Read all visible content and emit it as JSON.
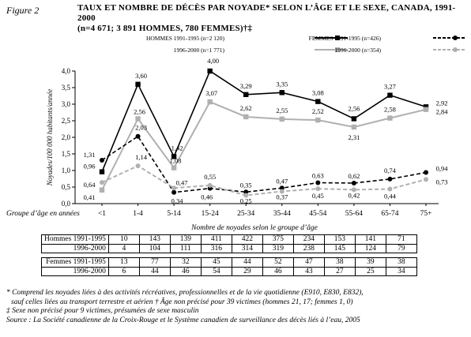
{
  "figure_label": "Figure 2",
  "title_line1": "TAUX ET NOMBRE DE DÉCÈS PAR NOYADE* SELON L’ÂGE ET LE SEXE, CANADA, 1991-2000",
  "title_line2": "(n=4 671; 3 891 HOMMES, 780 FEMMES)†‡",
  "chart_data": {
    "type": "line",
    "ylabel": "Noyades/100 000 habitants/année",
    "xlabel": "Nombre de noyades selon le groupe d’âge",
    "x_row_label": "Groupe d’âge en années",
    "ylim": [
      0,
      4.0
    ],
    "yticks": [
      "0,0",
      "0,5",
      "1,0",
      "1,5",
      "2,0",
      "2,5",
      "3,0",
      "3,5",
      "4,0"
    ],
    "categories": [
      "<1",
      "1-4",
      "5-14",
      "15-24",
      "25-34",
      "35-44",
      "45-54",
      "55-64",
      "65-74",
      "75+"
    ],
    "grid": false,
    "legend_position": "top",
    "series": [
      {
        "name": "HOMMES 1991-1995",
        "count": "(n=2 120)",
        "color": "#000000",
        "dash": "solid",
        "marker": "square",
        "values": [
          0.96,
          3.6,
          1.42,
          4.0,
          3.29,
          3.35,
          3.08,
          2.56,
          3.27,
          2.92
        ],
        "labels": [
          "0,96",
          "3,60",
          "1,42",
          "4,00",
          "3,29",
          "3,35",
          "3,08",
          "2,56",
          "3,27",
          "2,92"
        ]
      },
      {
        "name": "1996-2000",
        "count": "(n=1 771)",
        "color": "#b0b0b0",
        "dash": "solid",
        "marker": "square",
        "values": [
          0.41,
          2.56,
          1.08,
          3.07,
          2.62,
          2.55,
          2.52,
          2.31,
          2.58,
          2.84
        ],
        "labels": [
          "0,41",
          "2,56",
          "1,08",
          "3,07",
          "2,62",
          "2,55",
          "2,52",
          "2,31",
          "2,58",
          "2,84"
        ]
      },
      {
        "name": "FEMMES 1991-1995",
        "count": "(n=426)",
        "color": "#000000",
        "dash": "dashed",
        "marker": "circle",
        "values": [
          1.31,
          2.03,
          0.34,
          0.46,
          0.35,
          0.47,
          0.63,
          0.62,
          0.74,
          0.94
        ],
        "labels": [
          "1,31",
          "2,03",
          "0,34",
          "0,46",
          "0,35",
          "0,47",
          "0,63",
          "0,62",
          "0,74",
          "0,94"
        ]
      },
      {
        "name": "1996-2000",
        "count": "(n=354)",
        "color": "#b0b0b0",
        "dash": "dashed",
        "marker": "circle",
        "values": [
          0.64,
          1.14,
          0.47,
          0.55,
          0.25,
          0.37,
          0.45,
          0.42,
          0.44,
          0.73
        ],
        "labels": [
          "0,64",
          "1,14",
          "0,47",
          "0,55",
          "0,25",
          "0,37",
          "0,45",
          "0,42",
          "0,44",
          "0,73"
        ]
      }
    ]
  },
  "table": {
    "rows": [
      {
        "label": "Hommes 1991-1995",
        "values": [
          "10",
          "143",
          "139",
          "411",
          "422",
          "375",
          "234",
          "153",
          "141",
          "71"
        ]
      },
      {
        "label": "1996-2000",
        "values": [
          "4",
          "104",
          "111",
          "316",
          "314",
          "319",
          "238",
          "145",
          "124",
          "79"
        ]
      },
      {
        "label": "Femmes 1991-1995",
        "values": [
          "13",
          "77",
          "32",
          "45",
          "44",
          "52",
          "47",
          "38",
          "39",
          "38"
        ]
      },
      {
        "label": "1996-2000",
        "values": [
          "6",
          "44",
          "46",
          "54",
          "29",
          "46",
          "43",
          "27",
          "25",
          "34"
        ]
      }
    ]
  },
  "notes": {
    "line1": "* Comprend les noyades liées à des activités récréatives, professionnelles et de la vie quotidienne (E910, E830, E832),",
    "line2": "  sauf celles liées au transport terrestre et aérien   † Âge non précisé pour 39 victimes (hommes 21, 17; femmes 1, 0)",
    "line3": "‡ Sexe non précisé pour 9 victimes, présumées de sexe masculin",
    "source": "Source : La Société canadienne de la Croix-Rouge et le Système canadien de surveillance des décès liés à l’eau, 2005"
  }
}
